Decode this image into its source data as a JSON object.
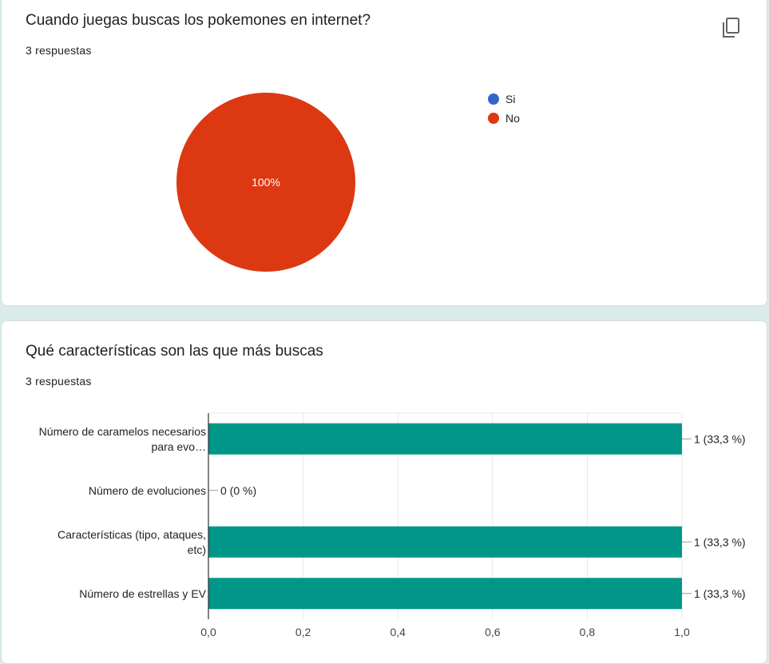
{
  "questions": [
    {
      "title": "Cuando juegas buscas los pokemones en internet?",
      "responses": "3 respuestas",
      "copy_icon": "copy-icon"
    },
    {
      "title": "Qué características son las que más buscas",
      "responses": "3 respuestas"
    }
  ],
  "chart_data": [
    {
      "type": "pie",
      "categories": [
        "Si",
        "No"
      ],
      "values": [
        0,
        3
      ],
      "slice_labels": [
        "",
        "100%"
      ],
      "colors": [
        "#3366cc",
        "#dc3912"
      ],
      "legend": "right"
    },
    {
      "type": "bar",
      "orientation": "horizontal",
      "categories": [
        [
          "Número de caramelos necesarios",
          "para evo…"
        ],
        [
          "Número de evoluciones"
        ],
        [
          "Características (tipo, ataques,",
          "etc)"
        ],
        [
          "Número de estrellas y EV"
        ]
      ],
      "values": [
        1,
        0,
        1,
        1
      ],
      "data_labels": [
        "1 (33,3 %)",
        "0 (0 %)",
        "1 (33,3 %)",
        "1 (33,3 %)"
      ],
      "xlim": [
        0,
        1
      ],
      "xticks": [
        "0,0",
        "0,2",
        "0,4",
        "0,6",
        "0,8",
        "1,0"
      ],
      "color": "#009688",
      "grid": true
    }
  ]
}
